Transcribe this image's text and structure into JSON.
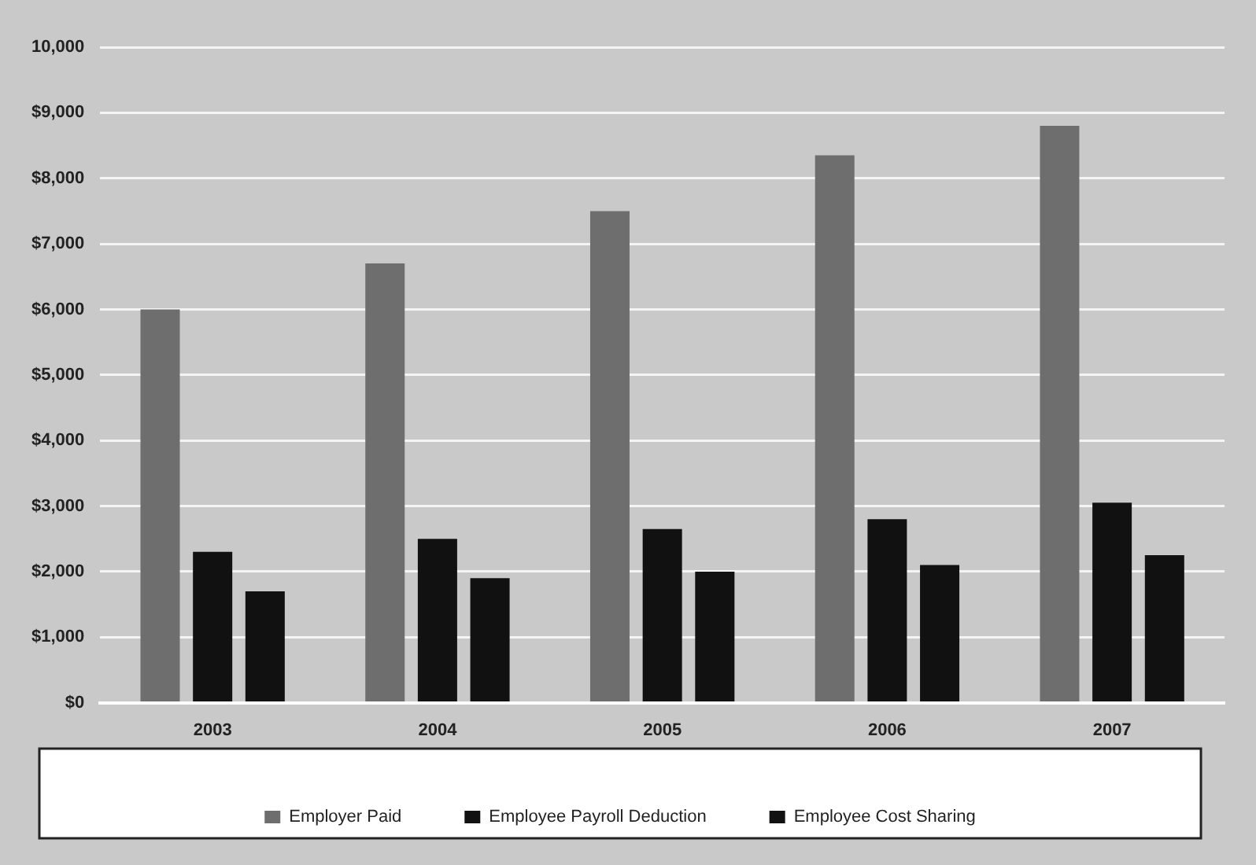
{
  "chart_data": {
    "type": "bar",
    "categories": [
      "2003",
      "2004",
      "2005",
      "2006",
      "2007"
    ],
    "series": [
      {
        "name": "Employer Paid",
        "color": "#6e6e6e",
        "values": [
          6000,
          6700,
          7500,
          8350,
          8800
        ]
      },
      {
        "name": "Employee Payroll Deduction",
        "color": "#111111",
        "values": [
          2300,
          2500,
          2650,
          2800,
          3050
        ]
      },
      {
        "name": "Employee Cost Sharing",
        "color": "#111111",
        "values": [
          1700,
          1900,
          2000,
          2100,
          2250
        ]
      }
    ],
    "ylim": [
      0,
      10000
    ],
    "yticks": [
      {
        "value": 0,
        "label": "$0"
      },
      {
        "value": 1000,
        "label": "$1,000"
      },
      {
        "value": 2000,
        "label": "$2,000"
      },
      {
        "value": 3000,
        "label": "$3,000"
      },
      {
        "value": 4000,
        "label": "$4,000"
      },
      {
        "value": 5000,
        "label": "$5,000"
      },
      {
        "value": 6000,
        "label": "$6,000"
      },
      {
        "value": 7000,
        "label": "$7,000"
      },
      {
        "value": 8000,
        "label": "$8,000"
      },
      {
        "value": 9000,
        "label": "$9,000"
      },
      {
        "value": 10000,
        "label": "10,000"
      }
    ],
    "grid": "y",
    "legend": "bottom"
  }
}
